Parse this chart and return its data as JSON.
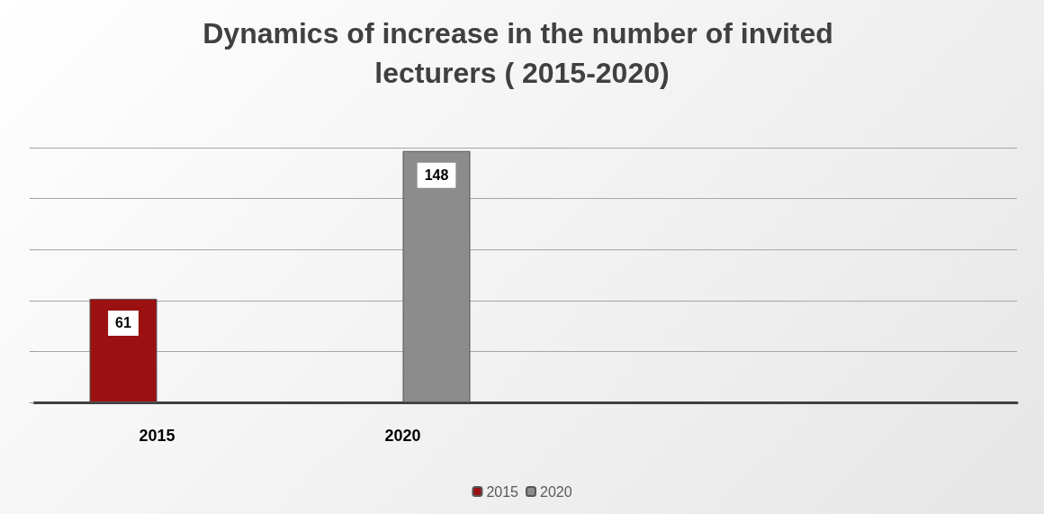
{
  "chart_data": {
    "type": "bar",
    "title": "Dynamics of increase in the number of invited lecturers ( 2015-2020)",
    "categories": [
      "2015",
      "2020",
      null,
      null
    ],
    "series": [
      {
        "name": "2015",
        "color": "#9b1111",
        "values": [
          61,
          null,
          null,
          null
        ]
      },
      {
        "name": "2020",
        "color": "#8c8c8c",
        "values": [
          null,
          148,
          null,
          null
        ]
      }
    ],
    "tick_labels": "x",
    "grid": "y",
    "legend": "bottom",
    "data_labels": true
  }
}
